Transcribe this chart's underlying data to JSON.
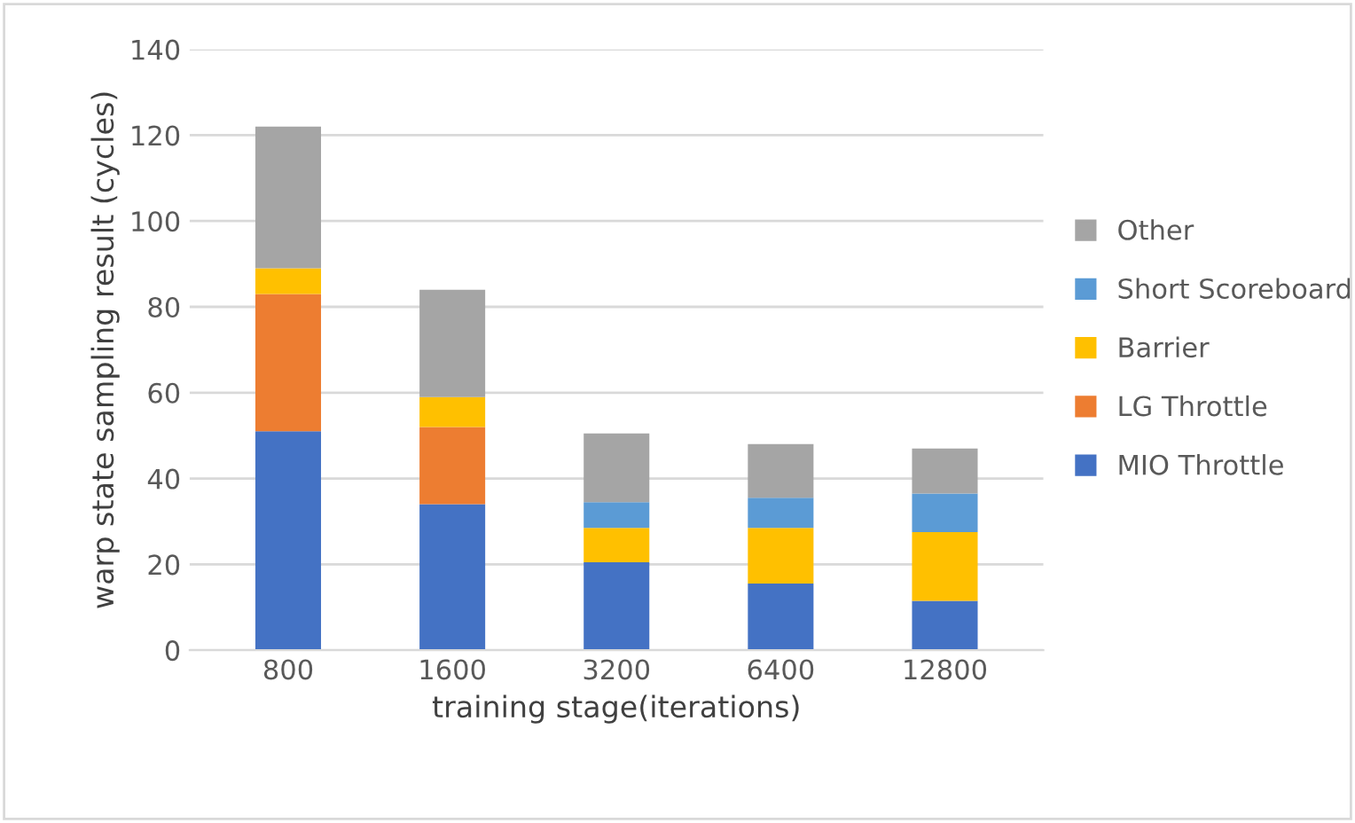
{
  "chart_data": {
    "type": "bar",
    "stacked": true,
    "xlabel": "training stage(iterations)",
    "ylabel": "warp state sampling result (cycles)",
    "categories": [
      "800",
      "1600",
      "3200",
      "6400",
      "12800"
    ],
    "series": [
      {
        "name": "MIO Throttle",
        "color": "#4472c4",
        "values": [
          51,
          34,
          20.5,
          15.5,
          11.5
        ]
      },
      {
        "name": "LG Throttle",
        "color": "#ed7d31",
        "values": [
          32,
          18,
          0,
          0,
          0
        ]
      },
      {
        "name": "Barrier",
        "color": "#ffc000",
        "values": [
          6,
          7,
          8,
          13,
          16
        ]
      },
      {
        "name": "Short Scoreboard",
        "color": "#5b9bd5",
        "values": [
          0,
          0,
          6,
          7,
          9
        ]
      },
      {
        "name": "Other",
        "color": "#a5a5a5",
        "values": [
          33,
          25,
          16,
          12.5,
          10.5
        ]
      }
    ],
    "ylim": [
      0,
      140
    ],
    "yticks": [
      0,
      20,
      40,
      60,
      80,
      100,
      120,
      140
    ],
    "grid": "y",
    "legend": "right"
  }
}
